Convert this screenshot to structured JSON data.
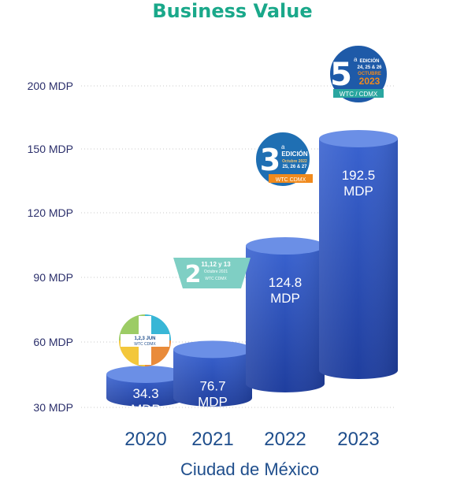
{
  "chart_data": {
    "type": "bar",
    "title": "Business Value",
    "xlabel": "Ciudad de México",
    "ylabel": "",
    "categories": [
      "2020",
      "2021",
      "2022",
      "2023"
    ],
    "values": [
      34.3,
      76.7,
      124.8,
      192.5
    ],
    "data_labels": [
      [
        "34.3",
        "MDP"
      ],
      [
        "76.7",
        "MDP"
      ],
      [
        "124.8",
        "MDP"
      ],
      [
        "192.5",
        "MDP"
      ]
    ],
    "y_ticks": [
      {
        "value": 30,
        "label": "30 MDP"
      },
      {
        "value": 60,
        "label": "60 MDP"
      },
      {
        "value": 90,
        "label": "90 MDP"
      },
      {
        "value": 120,
        "label": "120 MDP"
      },
      {
        "value": 150,
        "label": "150 MDP"
      },
      {
        "value": 200,
        "label": "200 MDP"
      }
    ],
    "grid": true,
    "bar_color": "#2f55c4",
    "bar_top_color": "#6b8fe6"
  },
  "badges": [
    {
      "year": "2020",
      "number": "",
      "lines": [
        "1,2,3 JUN",
        "WTC CDMX"
      ],
      "colors": [
        "#f3c73b",
        "#38b6d6",
        "#e98b3a",
        "#9ccc65"
      ]
    },
    {
      "year": "2021",
      "number": "2",
      "lines": [
        "11,12 y 13",
        "Octubre 2021",
        "WTC CDMX"
      ],
      "color": "#7fcfc4"
    },
    {
      "year": "2022",
      "number": "3",
      "sup": "a",
      "lines": [
        "EDICIÓN",
        "Octubre 2022",
        "25, 26 & 27"
      ],
      "ribbon": "WTC CDMX",
      "color": "#1f6fb3",
      "ribbon_color": "#f08a1d"
    },
    {
      "year": "2023",
      "number": "5",
      "sup": "a",
      "lines": [
        "EDICIÓN",
        "24, 25 & 26",
        "OCTUBRE",
        "2023"
      ],
      "ribbon": "WTC / CDMX",
      "color": "#1e5aa8",
      "ribbon_color": "#2aa6a0"
    }
  ]
}
